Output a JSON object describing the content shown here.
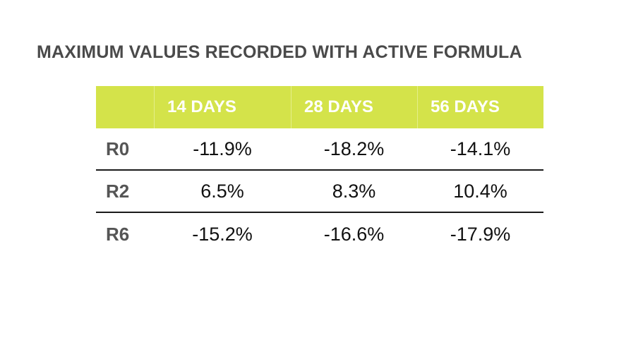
{
  "chart_data": {
    "type": "table",
    "title": "MAXIMUM VALUES RECORDED WITH ACTIVE FORMULA",
    "columns": [
      "",
      "14 DAYS",
      "28 DAYS",
      "56 DAYS"
    ],
    "rows": [
      {
        "label": "R0",
        "values": [
          "-11.9%",
          "-18.2%",
          "-14.1%"
        ]
      },
      {
        "label": "R2",
        "values": [
          "6.5%",
          "8.3%",
          "10.4%"
        ]
      },
      {
        "label": "R6",
        "values": [
          "-15.2%",
          "-16.6%",
          "-17.9%"
        ]
      }
    ],
    "header_color": "#d4e34a",
    "header_text_color": "#ffffff"
  }
}
